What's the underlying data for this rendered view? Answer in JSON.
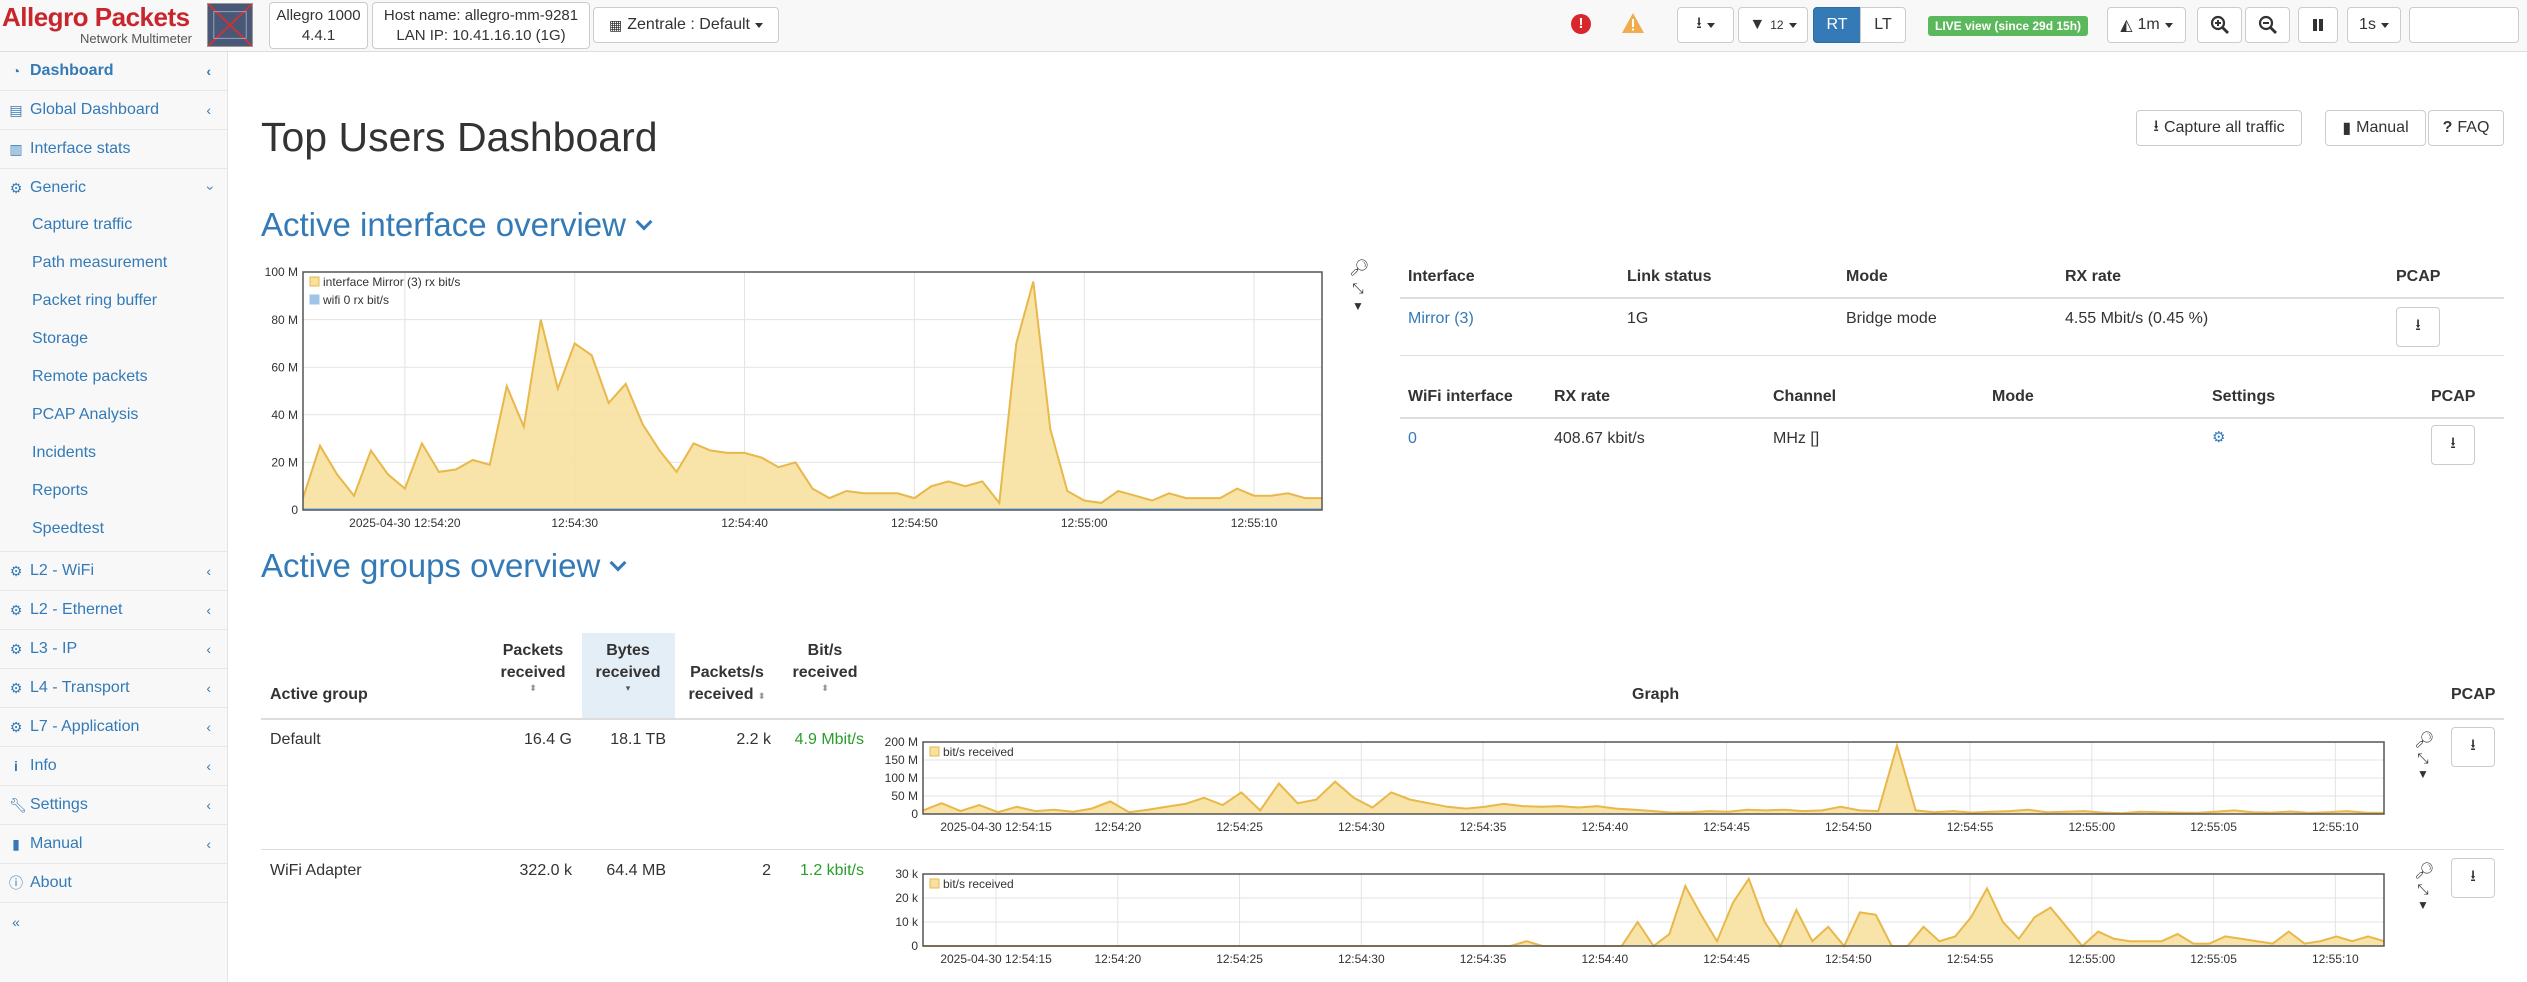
{
  "brand": {
    "title": "Allegro Packets",
    "subtitle": "Network Multimeter"
  },
  "device": {
    "model": "Allegro 1000",
    "version": "4.4.1"
  },
  "host": {
    "name": "Host name: allegro-mm-9281",
    "lan": "LAN IP: 10.41.16.10 (1G)"
  },
  "dashboard_select": {
    "label": "Zentrale : Default"
  },
  "toolbar": {
    "filter_count": "12",
    "rt_label": "RT",
    "lt_label": "LT",
    "live_label": "LIVE view (since 29d 15h)",
    "interval_label": "1m",
    "refresh_label": "1s",
    "alert_label": "!"
  },
  "sidebar": {
    "items": [
      {
        "label": "Dashboard",
        "icon": "dashboard-icon"
      },
      {
        "label": "Global Dashboard",
        "icon": "global-dashboard-icon"
      },
      {
        "label": "Interface stats",
        "icon": "bar-chart-icon"
      },
      {
        "label": "Generic",
        "icon": "gear-icon"
      },
      {
        "label": "L2 - WiFi",
        "icon": "gear-icon"
      },
      {
        "label": "L2 - Ethernet",
        "icon": "gear-icon"
      },
      {
        "label": "L3 - IP",
        "icon": "gear-icon"
      },
      {
        "label": "L4 - Transport",
        "icon": "gear-icon"
      },
      {
        "label": "L7 - Application",
        "icon": "gear-icon"
      },
      {
        "label": "Info",
        "icon": "info-icon"
      },
      {
        "label": "Settings",
        "icon": "wrench-icon"
      },
      {
        "label": "Manual",
        "icon": "book-icon"
      },
      {
        "label": "About",
        "icon": "info-circle-icon"
      }
    ],
    "generic_sub": [
      "Capture traffic",
      "Path measurement",
      "Packet ring buffer",
      "Storage",
      "Remote packets",
      "PCAP Analysis",
      "Incidents",
      "Reports",
      "Speedtest"
    ],
    "collapse_label": "«"
  },
  "main": {
    "title": "Top Users Dashboard",
    "capture_label": "Capture all traffic",
    "manual_label": "Manual",
    "faq_label": "FAQ"
  },
  "interfaces": {
    "section_title": "Active interface overview",
    "headers": [
      "Interface",
      "Link status",
      "Mode",
      "RX rate",
      "PCAP"
    ],
    "rows": [
      {
        "name": "Mirror (3)",
        "link": "1G",
        "mode": "Bridge mode",
        "rx": "4.55 Mbit/s (0.45 %)"
      }
    ],
    "wifi_headers": [
      "WiFi interface",
      "RX rate",
      "Channel",
      "Mode",
      "Settings",
      "PCAP"
    ],
    "wifi_rows": [
      {
        "name": "0",
        "rx": "408.67 kbit/s",
        "channel": "MHz []",
        "mode": ""
      }
    ]
  },
  "groups": {
    "section_title": "Active groups overview",
    "headers": {
      "group": "Active group",
      "packets": "Packets received",
      "bytes": "Bytes received",
      "pps": "Packets/s received",
      "bps": "Bit/s received",
      "graph": "Graph",
      "pcap": "PCAP"
    },
    "rows": [
      {
        "name": "Default",
        "packets": "16.4 G",
        "bytes": "18.1 TB",
        "pps": "2.2 k",
        "bps": "4.9 Mbit/s"
      },
      {
        "name": "WiFi Adapter",
        "packets": "322.0 k",
        "bytes": "64.4 MB",
        "pps": "2",
        "bps": "1.2 kbit/s"
      }
    ]
  },
  "chart_data": [
    {
      "type": "area",
      "series": [
        {
          "name": "interface Mirror (3) rx bit/s",
          "color": "#e8b84a",
          "values": [
            5,
            27,
            15,
            6,
            25,
            15,
            9,
            28,
            16,
            17,
            21,
            19,
            52,
            35,
            80,
            51,
            70,
            65,
            45,
            53,
            36,
            25,
            16,
            28,
            25,
            24,
            24,
            22,
            18,
            20,
            9,
            5,
            8,
            7,
            7,
            7,
            5,
            10,
            12,
            10,
            12,
            3,
            70,
            96,
            34,
            8,
            4,
            3,
            8,
            6,
            4,
            7,
            5,
            5,
            5,
            9,
            6,
            6,
            7,
            5,
            5
          ],
          "fill": "#f7e0a0"
        },
        {
          "name": "wifi 0 rx bit/s",
          "color": "#9ec5e8",
          "values": [
            0.4,
            0.4,
            0.4,
            0.4,
            0.4,
            0.4,
            0.4,
            0.4,
            0.4,
            0.4,
            0.4,
            0.4,
            0.4,
            0.4,
            0.4,
            0.4,
            0.4,
            0.4,
            0.4,
            0.4,
            0.4,
            0.4,
            0.4,
            0.4,
            0.4,
            0.4,
            0.4,
            0.4,
            0.4,
            0.4,
            0.4,
            0.4,
            0.4,
            0.4,
            0.4,
            0.4,
            0.4,
            0.4,
            0.4,
            0.4,
            0.4,
            0.4,
            0.4,
            0.4,
            0.4,
            0.4,
            0.4,
            0.4,
            0.4,
            0.4,
            0.4,
            0.4,
            0.4,
            0.4,
            0.4,
            0.4,
            0.4,
            0.4,
            0.4,
            0.4,
            0.4
          ]
        }
      ],
      "ylim": [
        0,
        100
      ],
      "yticks": [
        "0",
        "20 M",
        "40 M",
        "60 M",
        "80 M",
        "100 M"
      ],
      "xticks": [
        "2025-04-30 12:54:20",
        "12:54:30",
        "12:54:40",
        "12:54:50",
        "12:55:00",
        "12:55:10"
      ],
      "grid": true,
      "legend": "top-left"
    },
    {
      "type": "area",
      "series": [
        {
          "name": "bit/s received",
          "color": "#e8b84a",
          "fill": "#f7e0a0",
          "values": [
            10,
            30,
            8,
            25,
            5,
            20,
            8,
            12,
            6,
            15,
            35,
            5,
            12,
            20,
            28,
            45,
            25,
            60,
            10,
            85,
            30,
            40,
            90,
            45,
            18,
            60,
            40,
            30,
            20,
            15,
            20,
            28,
            22,
            20,
            22,
            18,
            22,
            15,
            12,
            8,
            4,
            5,
            8,
            6,
            12,
            10,
            12,
            8,
            10,
            20,
            10,
            8,
            190,
            10,
            5,
            8,
            4,
            6,
            8,
            12,
            5,
            6,
            8,
            4,
            2,
            6,
            5,
            4,
            3,
            6,
            10,
            5,
            4,
            7,
            3,
            5,
            8,
            4,
            3
          ]
        }
      ],
      "ylim": [
        0,
        200
      ],
      "yticks": [
        "0",
        "50 M",
        "100 M",
        "150 M",
        "200 M"
      ],
      "xticks": [
        "2025-04-30 12:54:15",
        "12:54:20",
        "12:54:25",
        "12:54:30",
        "12:54:35",
        "12:54:40",
        "12:54:45",
        "12:54:50",
        "12:54:55",
        "12:55:00",
        "12:55:05",
        "12:55:10"
      ],
      "grid": true,
      "legend": "top-left"
    },
    {
      "type": "area",
      "series": [
        {
          "name": "bit/s received",
          "color": "#e8b84a",
          "fill": "#f7e0a0",
          "values": [
            0,
            0,
            0,
            0,
            0,
            0,
            0,
            0,
            0,
            0,
            0,
            0,
            0,
            0,
            0,
            0,
            0,
            0,
            0,
            0,
            0,
            0,
            0,
            0,
            0,
            0,
            0,
            0,
            0,
            0,
            0,
            0,
            0,
            0,
            0,
            0,
            0,
            0,
            2,
            0,
            0,
            0,
            0,
            0,
            0,
            10,
            0,
            5,
            25,
            13,
            2,
            18,
            28,
            10,
            0,
            15,
            2,
            8,
            0,
            14,
            13,
            0,
            0,
            8,
            2,
            4,
            12,
            24,
            10,
            3,
            12,
            16,
            8,
            0,
            6,
            3,
            2,
            2,
            2,
            5,
            1,
            1,
            4,
            3,
            2,
            1,
            6,
            1,
            2,
            4,
            2,
            4,
            2
          ]
        }
      ],
      "ylim": [
        0,
        30
      ],
      "yticks": [
        "0",
        "10 k",
        "20 k",
        "30 k"
      ],
      "xticks": [
        "2025-04-30 12:54:15",
        "12:54:20",
        "12:54:25",
        "12:54:30",
        "12:54:35",
        "12:54:40",
        "12:54:45",
        "12:54:50",
        "12:54:55",
        "12:55:00",
        "12:55:05",
        "12:55:10"
      ],
      "grid": true,
      "legend": "top-left"
    }
  ]
}
